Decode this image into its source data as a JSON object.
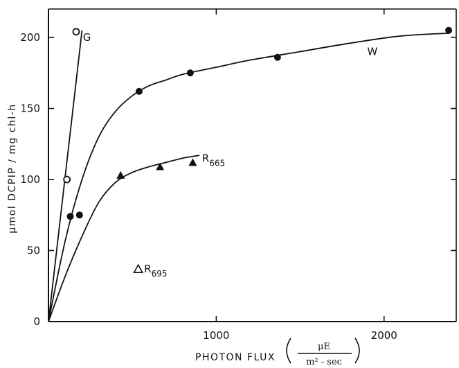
{
  "chart_data": {
    "type": "line",
    "title": "",
    "xlabel": "PHOTON FLUX",
    "xunit_numerator": "μE",
    "xunit_denominator": "m² - sec",
    "ylabel": "μmol DCPIP / mg chl-h",
    "xlim": [
      0,
      2430
    ],
    "ylim": [
      0,
      220
    ],
    "xticks": [
      1000,
      2000
    ],
    "yticks": [
      0,
      50,
      100,
      150,
      200
    ],
    "grid": false,
    "series": [
      {
        "name": "G",
        "label_main": "G",
        "label_sub": "",
        "marker": "open-circle",
        "points": [
          {
            "x": 110,
            "y": 100
          },
          {
            "x": 165,
            "y": 204
          }
        ],
        "fit": [
          [
            0,
            0
          ],
          [
            200,
            205
          ]
        ]
      },
      {
        "name": "W",
        "label_main": "W",
        "label_sub": "",
        "marker": "filled-circle",
        "points": [
          {
            "x": 130,
            "y": 74
          },
          {
            "x": 185,
            "y": 75
          },
          {
            "x": 540,
            "y": 162
          },
          {
            "x": 845,
            "y": 175
          },
          {
            "x": 1365,
            "y": 186
          },
          {
            "x": 2385,
            "y": 205
          }
        ],
        "fit": [
          [
            0,
            0
          ],
          [
            100,
            57
          ],
          [
            200,
            100
          ],
          [
            300,
            130
          ],
          [
            400,
            148
          ],
          [
            500,
            159
          ],
          [
            600,
            166
          ],
          [
            700,
            170
          ],
          [
            800,
            174
          ],
          [
            1000,
            179
          ],
          [
            1200,
            184
          ],
          [
            1500,
            190
          ],
          [
            1800,
            196
          ],
          [
            2100,
            201
          ],
          [
            2390,
            203
          ]
        ]
      },
      {
        "name": "R665",
        "label_main": "R",
        "label_sub": "665",
        "marker": "filled-triangle",
        "points": [
          {
            "x": 430,
            "y": 103
          },
          {
            "x": 665,
            "y": 109
          },
          {
            "x": 860,
            "y": 112
          }
        ],
        "fit": [
          [
            0,
            0
          ],
          [
            100,
            32
          ],
          [
            200,
            60
          ],
          [
            300,
            84
          ],
          [
            400,
            98
          ],
          [
            500,
            105
          ],
          [
            600,
            109
          ],
          [
            700,
            112
          ],
          [
            800,
            115
          ],
          [
            900,
            117
          ]
        ]
      },
      {
        "name": "R695",
        "label_main": "R",
        "label_sub": "695",
        "marker": "open-triangle",
        "points": [
          {
            "x": 535,
            "y": 37
          }
        ],
        "fit": []
      }
    ]
  }
}
